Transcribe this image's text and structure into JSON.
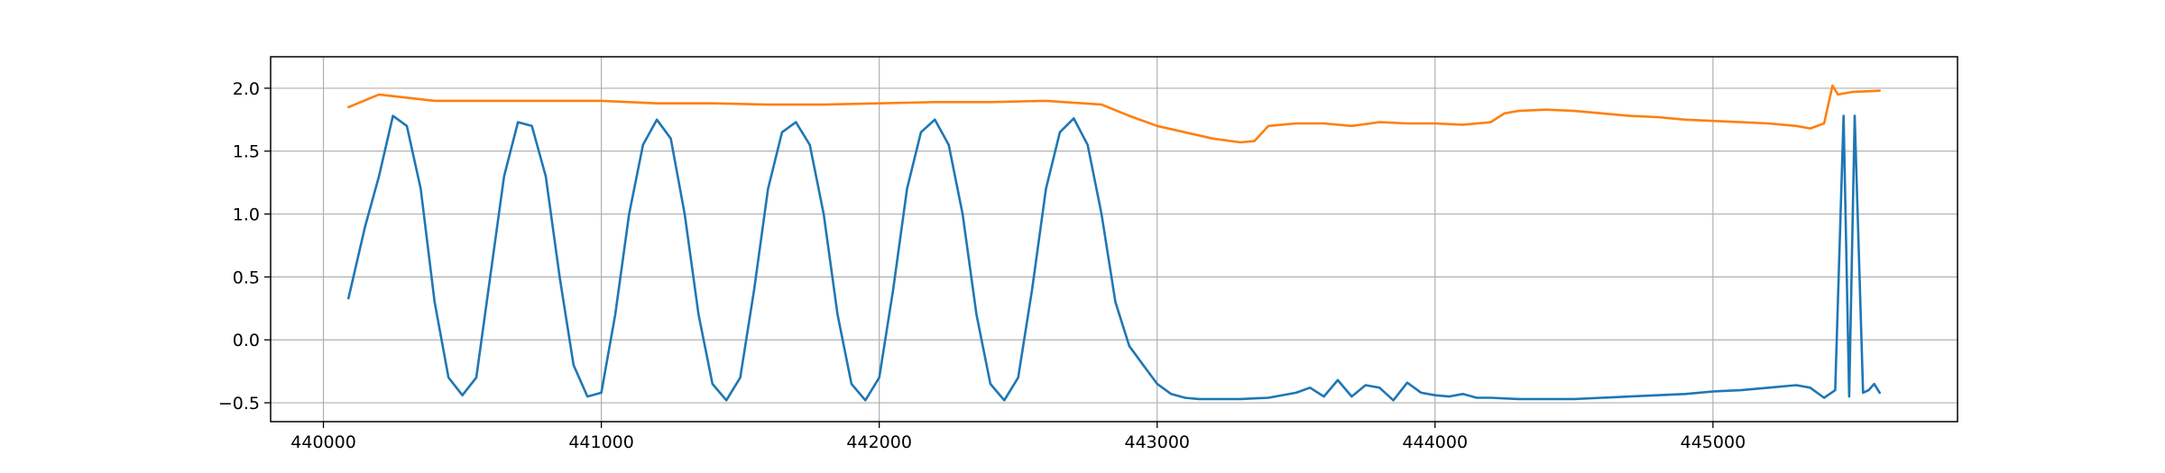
{
  "chart_data": {
    "type": "line",
    "title": "",
    "xlabel": "",
    "ylabel": "",
    "xlim": [
      439810,
      445880
    ],
    "ylim": [
      -0.65,
      2.25
    ],
    "grid": true,
    "x_ticks": [
      440000,
      441000,
      442000,
      443000,
      444000,
      445000
    ],
    "y_ticks": [
      -0.5,
      0.0,
      0.5,
      1.0,
      1.5,
      2.0
    ],
    "series": [
      {
        "color": "#1f77b4",
        "x": [
          440090,
          440150,
          440200,
          440250,
          440300,
          440350,
          440400,
          440450,
          440500,
          440550,
          440600,
          440650,
          440700,
          440750,
          440800,
          440850,
          440900,
          440950,
          441000,
          441050,
          441100,
          441150,
          441200,
          441250,
          441300,
          441350,
          441400,
          441450,
          441500,
          441550,
          441600,
          441650,
          441700,
          441750,
          441800,
          441850,
          441900,
          441950,
          442000,
          442050,
          442100,
          442150,
          442200,
          442250,
          442300,
          442350,
          442400,
          442450,
          442500,
          442550,
          442600,
          442650,
          442700,
          442750,
          442800,
          442850,
          442900,
          442950,
          443000,
          443050,
          443100,
          443150,
          443200,
          443300,
          443400,
          443500,
          443550,
          443600,
          443650,
          443700,
          443750,
          443800,
          443850,
          443900,
          443950,
          444000,
          444050,
          444100,
          444150,
          444200,
          444300,
          444400,
          444500,
          444600,
          444700,
          444800,
          444900,
          445000,
          445100,
          445200,
          445300,
          445350,
          445400,
          445440,
          445470,
          445490,
          445510,
          445540,
          445560,
          445580,
          445600
        ],
        "y": [
          0.33,
          0.9,
          1.3,
          1.78,
          1.7,
          1.2,
          0.3,
          -0.3,
          -0.44,
          -0.3,
          0.5,
          1.3,
          1.73,
          1.7,
          1.3,
          0.5,
          -0.2,
          -0.45,
          -0.42,
          0.2,
          1.0,
          1.55,
          1.75,
          1.6,
          1.0,
          0.2,
          -0.35,
          -0.48,
          -0.3,
          0.4,
          1.2,
          1.65,
          1.73,
          1.55,
          1.0,
          0.2,
          -0.35,
          -0.48,
          -0.3,
          0.4,
          1.2,
          1.65,
          1.75,
          1.55,
          1.0,
          0.2,
          -0.35,
          -0.48,
          -0.3,
          0.4,
          1.2,
          1.65,
          1.76,
          1.55,
          1.0,
          0.3,
          -0.05,
          -0.2,
          -0.35,
          -0.43,
          -0.46,
          -0.47,
          -0.47,
          -0.47,
          -0.46,
          -0.42,
          -0.38,
          -0.45,
          -0.32,
          -0.45,
          -0.36,
          -0.38,
          -0.48,
          -0.34,
          -0.42,
          -0.44,
          -0.45,
          -0.43,
          -0.46,
          -0.46,
          -0.47,
          -0.47,
          -0.47,
          -0.46,
          -0.45,
          -0.44,
          -0.43,
          -0.41,
          -0.4,
          -0.38,
          -0.36,
          -0.38,
          -0.46,
          -0.4,
          1.78,
          -0.45,
          1.78,
          -0.42,
          -0.4,
          -0.35,
          -0.42
        ]
      },
      {
        "color": "#ff7f0e",
        "x": [
          440090,
          440200,
          440400,
          440600,
          440800,
          441000,
          441200,
          441400,
          441600,
          441800,
          442000,
          442200,
          442400,
          442600,
          442800,
          442900,
          443000,
          443100,
          443200,
          443300,
          443350,
          443400,
          443500,
          443600,
          443700,
          443800,
          443900,
          444000,
          444100,
          444200,
          444250,
          444300,
          444400,
          444500,
          444600,
          444700,
          444800,
          444900,
          445000,
          445100,
          445200,
          445300,
          445350,
          445400,
          445430,
          445450,
          445500,
          445600
        ],
        "y": [
          1.85,
          1.95,
          1.9,
          1.9,
          1.9,
          1.9,
          1.88,
          1.88,
          1.87,
          1.87,
          1.88,
          1.89,
          1.89,
          1.9,
          1.87,
          1.78,
          1.7,
          1.65,
          1.6,
          1.57,
          1.58,
          1.7,
          1.72,
          1.72,
          1.7,
          1.73,
          1.72,
          1.72,
          1.71,
          1.73,
          1.8,
          1.82,
          1.83,
          1.82,
          1.8,
          1.78,
          1.77,
          1.75,
          1.74,
          1.73,
          1.72,
          1.7,
          1.68,
          1.72,
          2.02,
          1.95,
          1.97,
          1.98
        ]
      }
    ]
  }
}
